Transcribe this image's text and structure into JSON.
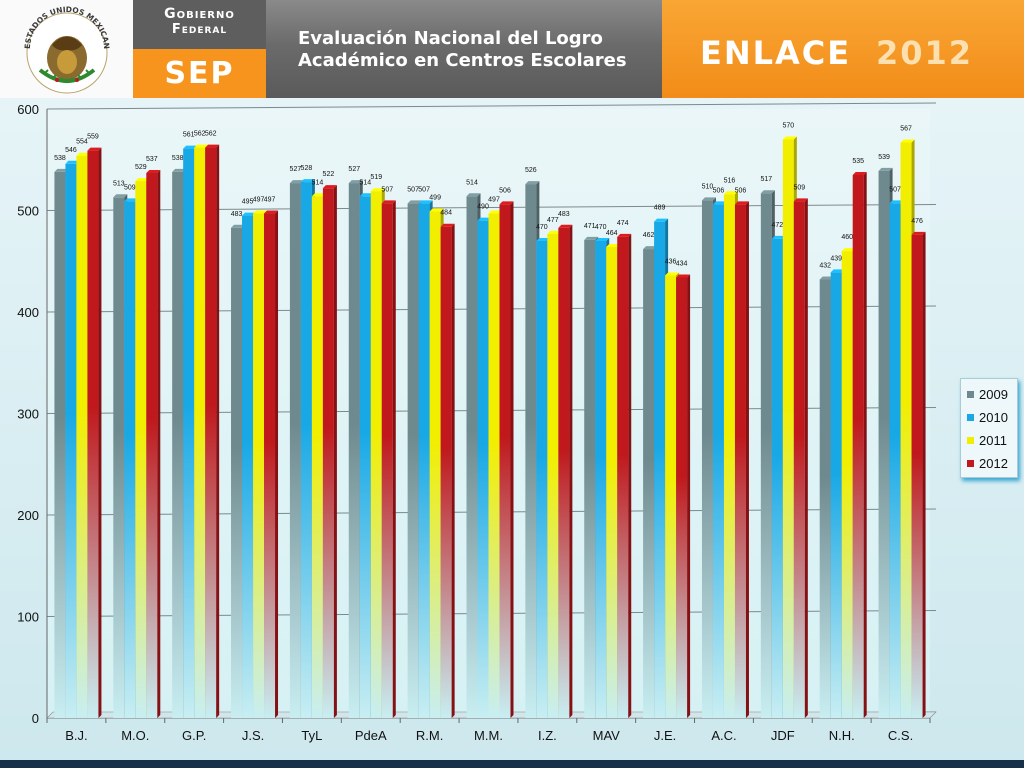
{
  "header": {
    "seal_text": "ESTADOS UNIDOS MEXICANOS",
    "gobierno_line1": "Gobierno",
    "gobierno_line2": "Federal",
    "sep": "SEP",
    "title_line1": "Evaluación Nacional del Logro",
    "title_line2": "Académico en Centros Escolares",
    "enlace": "ENLACE",
    "year": "2012"
  },
  "colors": {
    "2009": "#6f8a8f",
    "2010": "#18a8e6",
    "2011": "#f2ee00",
    "2012": "#c0181c"
  },
  "chart_data": {
    "type": "bar",
    "categories": [
      "B.J.",
      "M.O.",
      "G.P.",
      "J.S.",
      "TyL",
      "PdeA",
      "R.M.",
      "M.M.",
      "I.Z.",
      "MAV",
      "J.E.",
      "A.C.",
      "JDF",
      "N.H.",
      "C.S."
    ],
    "series": [
      {
        "name": "2009",
        "values": [
          538,
          513,
          538,
          483,
          527,
          527,
          507,
          514,
          526,
          471,
          462,
          510,
          517,
          432,
          539
        ]
      },
      {
        "name": "2010",
        "values": [
          546,
          509,
          561,
          495,
          528,
          514,
          507,
          490,
          470,
          470,
          489,
          506,
          472,
          439,
          507
        ]
      },
      {
        "name": "2011",
        "values": [
          554,
          529,
          562,
          497,
          514,
          519,
          499,
          497,
          477,
          464,
          436,
          516,
          570,
          460,
          567
        ]
      },
      {
        "name": "2012",
        "values": [
          559,
          537,
          562,
          497,
          522,
          507,
          484,
          506,
          483,
          474,
          434,
          506,
          509,
          535,
          476
        ]
      }
    ],
    "ylim": [
      0,
      600
    ],
    "yticks": [
      "0",
      "100",
      "200",
      "300",
      "400",
      "500",
      "600"
    ],
    "grid": true,
    "legend": "right"
  }
}
